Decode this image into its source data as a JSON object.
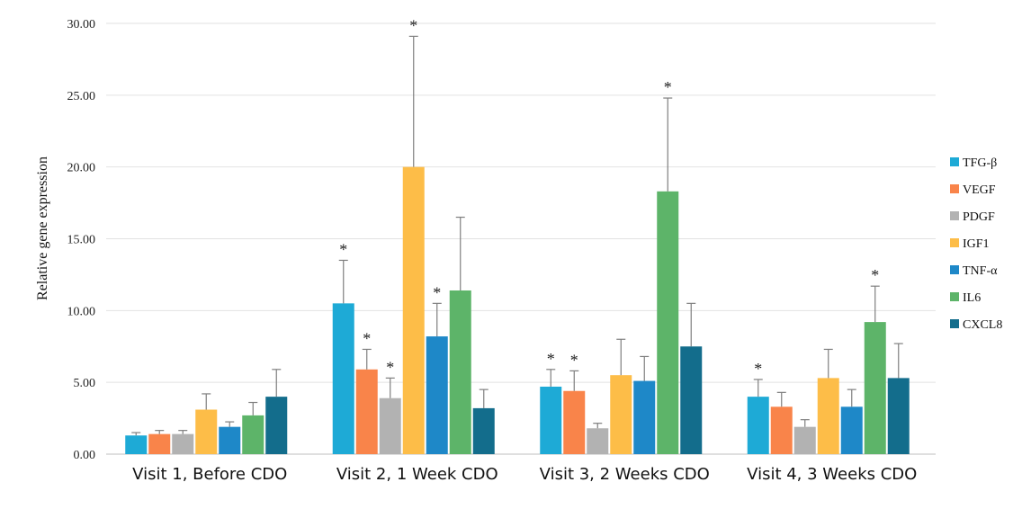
{
  "chart_data": {
    "type": "bar",
    "title": "",
    "xlabel": "",
    "ylabel": "Relative gene expression",
    "ylim": [
      0,
      30
    ],
    "yticks": [
      "0.00",
      "5.00",
      "10.00",
      "15.00",
      "20.00",
      "25.00",
      "30.00"
    ],
    "grid": true,
    "legend_position": "right",
    "categories": [
      "Visit 1, Before CDO",
      "Visit 2, 1 Week CDO",
      "Visit 3, 2 Weeks CDO",
      "Visit 4, 3 Weeks CDO"
    ],
    "series": [
      {
        "name": "TFG-β",
        "color": "#1eaad6",
        "values": [
          1.3,
          10.5,
          4.7,
          4.0
        ],
        "errors": [
          0.2,
          3.0,
          1.2,
          1.2
        ],
        "significant": [
          false,
          true,
          true,
          true
        ]
      },
      {
        "name": "VEGF",
        "color": "#f9844a",
        "values": [
          1.4,
          5.9,
          4.4,
          3.3
        ],
        "errors": [
          0.25,
          1.4,
          1.4,
          1.0
        ],
        "significant": [
          false,
          true,
          true,
          false
        ]
      },
      {
        "name": "PDGF",
        "color": "#b2b2b2",
        "values": [
          1.4,
          3.9,
          1.8,
          1.9
        ],
        "errors": [
          0.25,
          1.4,
          0.35,
          0.5
        ],
        "significant": [
          false,
          true,
          false,
          false
        ]
      },
      {
        "name": "IGF1",
        "color": "#fdbd48",
        "values": [
          3.1,
          20.0,
          5.5,
          5.3
        ],
        "errors": [
          1.1,
          9.1,
          2.5,
          2.0
        ],
        "significant": [
          false,
          true,
          false,
          false
        ]
      },
      {
        "name": "TNF-α",
        "color": "#1e88c8",
        "values": [
          1.9,
          8.2,
          5.1,
          3.3
        ],
        "errors": [
          0.35,
          2.3,
          1.7,
          1.2
        ],
        "significant": [
          false,
          true,
          false,
          false
        ]
      },
      {
        "name": "IL6",
        "color": "#5db469",
        "values": [
          2.7,
          11.4,
          18.3,
          9.2
        ],
        "errors": [
          0.9,
          5.1,
          6.5,
          2.5
        ],
        "significant": [
          false,
          false,
          true,
          true
        ]
      },
      {
        "name": "CXCL8",
        "color": "#136d8c",
        "values": [
          4.0,
          3.2,
          7.5,
          5.3
        ],
        "errors": [
          1.9,
          1.3,
          3.0,
          2.4
        ],
        "significant": [
          false,
          false,
          false,
          false
        ]
      }
    ],
    "significance_marker": "*"
  }
}
